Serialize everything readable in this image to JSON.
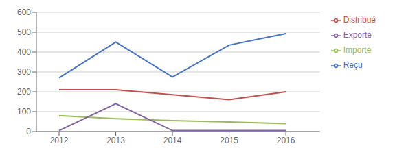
{
  "chart_data": {
    "type": "line",
    "x": [
      2012,
      2013,
      2014,
      2015,
      2016
    ],
    "xlim": [
      2011.6,
      2016.6
    ],
    "xticks": [
      2012,
      2013,
      2014,
      2015,
      2016
    ],
    "ylim": [
      0,
      600
    ],
    "yticks": [
      0,
      100,
      200,
      300,
      400,
      500,
      600
    ],
    "grid": true,
    "legend": "right",
    "series": [
      {
        "name": "Reçu",
        "color": "#4472C4",
        "values": [
          270,
          450,
          275,
          435,
          493
        ]
      },
      {
        "name": "Distribué",
        "color": "#C0504D",
        "values": [
          210,
          210,
          185,
          160,
          200
        ]
      },
      {
        "name": "Importé",
        "color": "#9BBB59",
        "values": [
          80,
          65,
          55,
          48,
          40
        ]
      },
      {
        "name": "Exporté",
        "color": "#8064A2",
        "values": [
          5,
          140,
          5,
          5,
          5
        ]
      }
    ]
  }
}
